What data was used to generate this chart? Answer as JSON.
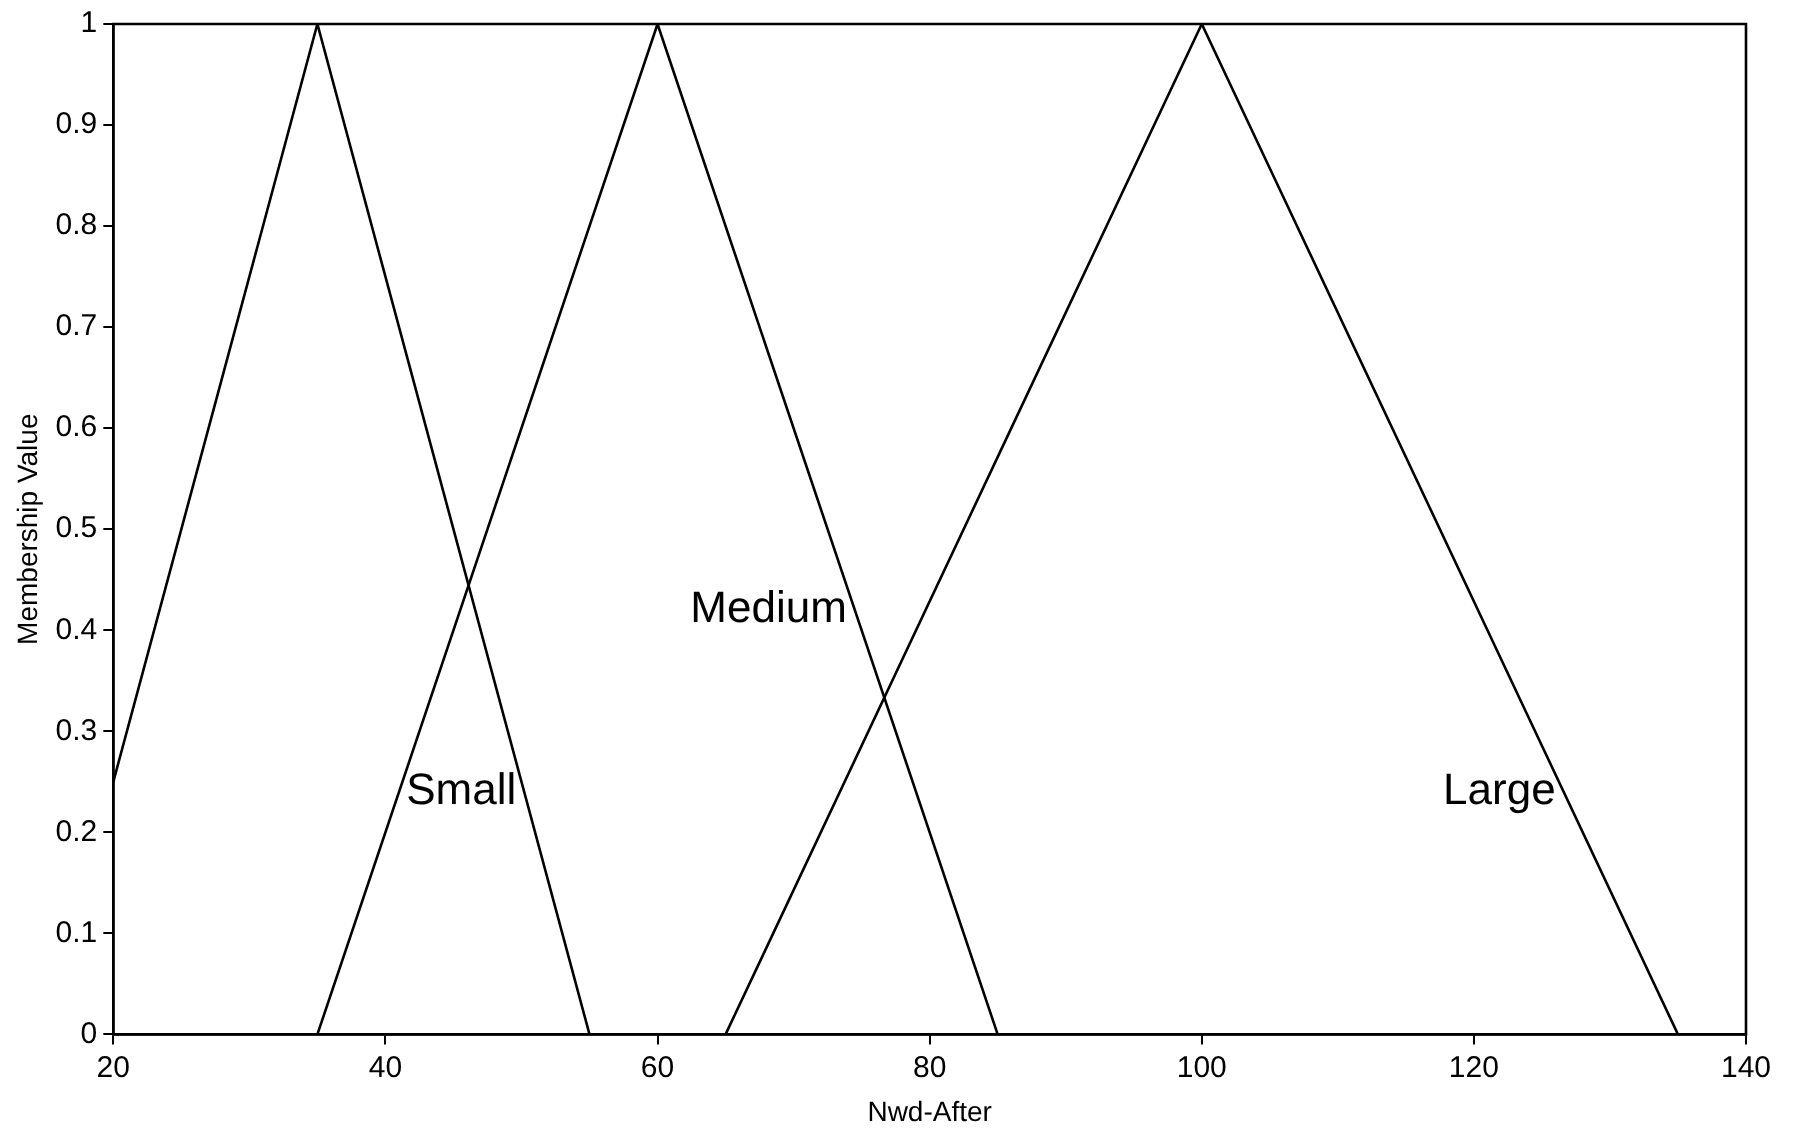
{
  "chart_data": {
    "type": "line",
    "xlabel": "Nwd-After",
    "ylabel": "Membership Value",
    "xlim": [
      20,
      140
    ],
    "xticks": [
      20,
      40,
      60,
      80,
      100,
      120,
      140
    ],
    "ylim": [
      0,
      1
    ],
    "yticks": [
      0,
      0.1,
      0.2,
      0.3,
      0.4,
      0.5,
      0.6,
      0.7,
      0.8,
      0.9,
      1
    ],
    "grid": false,
    "legend": false,
    "marker": "none",
    "line_style": "solid",
    "series": [
      {
        "name": "Small",
        "color": "#000000",
        "x": [
          20,
          35,
          55
        ],
        "values": [
          0.25,
          1,
          0
        ]
      },
      {
        "name": "Medium",
        "color": "#000000",
        "x": [
          35,
          60,
          85
        ],
        "values": [
          0,
          1,
          0
        ]
      },
      {
        "name": "Large",
        "color": "#000000",
        "x": [
          65,
          100,
          135
        ],
        "values": [
          0,
          1,
          0
        ]
      }
    ]
  }
}
